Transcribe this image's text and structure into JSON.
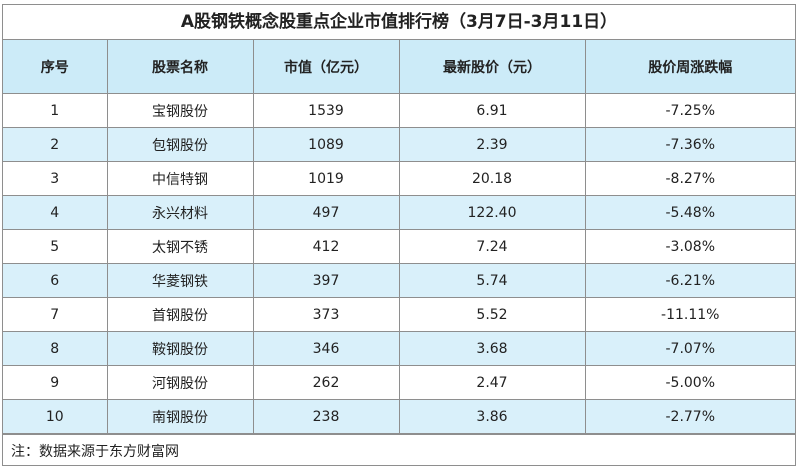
{
  "title": "A股钢铁概念股重点企业市值排行榜（3月7日-3月11日）",
  "headers": [
    "序号",
    "股票名称",
    "市值（亿元）",
    "最新股价（元）",
    "股价周涨跌幅"
  ],
  "rows": [
    [
      "1",
      "宝钢股份",
      "1539",
      "6.91",
      "-7.25%"
    ],
    [
      "2",
      "包钢股份",
      "1089",
      "2.39",
      "-7.36%"
    ],
    [
      "3",
      "中信特钢",
      "1019",
      "20.18",
      "-8.27%"
    ],
    [
      "4",
      "永兴材料",
      "497",
      "122.40",
      "-5.48%"
    ],
    [
      "5",
      "太钢不锈",
      "412",
      "7.24",
      "-3.08%"
    ],
    [
      "6",
      "华菱钢铁",
      "397",
      "5.74",
      "-6.21%"
    ],
    [
      "7",
      "首钢股份",
      "373",
      "5.52",
      "-11.11%"
    ],
    [
      "8",
      "鞍钢股份",
      "346",
      "3.68",
      "-7.07%"
    ],
    [
      "9",
      "河钢股份",
      "262",
      "2.47",
      "-5.00%"
    ],
    [
      "10",
      "南钢股份",
      "238",
      "3.86",
      "-2.77%"
    ]
  ],
  "note": "注：数据来源于东方财富网",
  "colors": {
    "header_bg": "#ccebf8",
    "alt_row_bg": "#d9f0fa",
    "border": "#8e8e8e"
  }
}
